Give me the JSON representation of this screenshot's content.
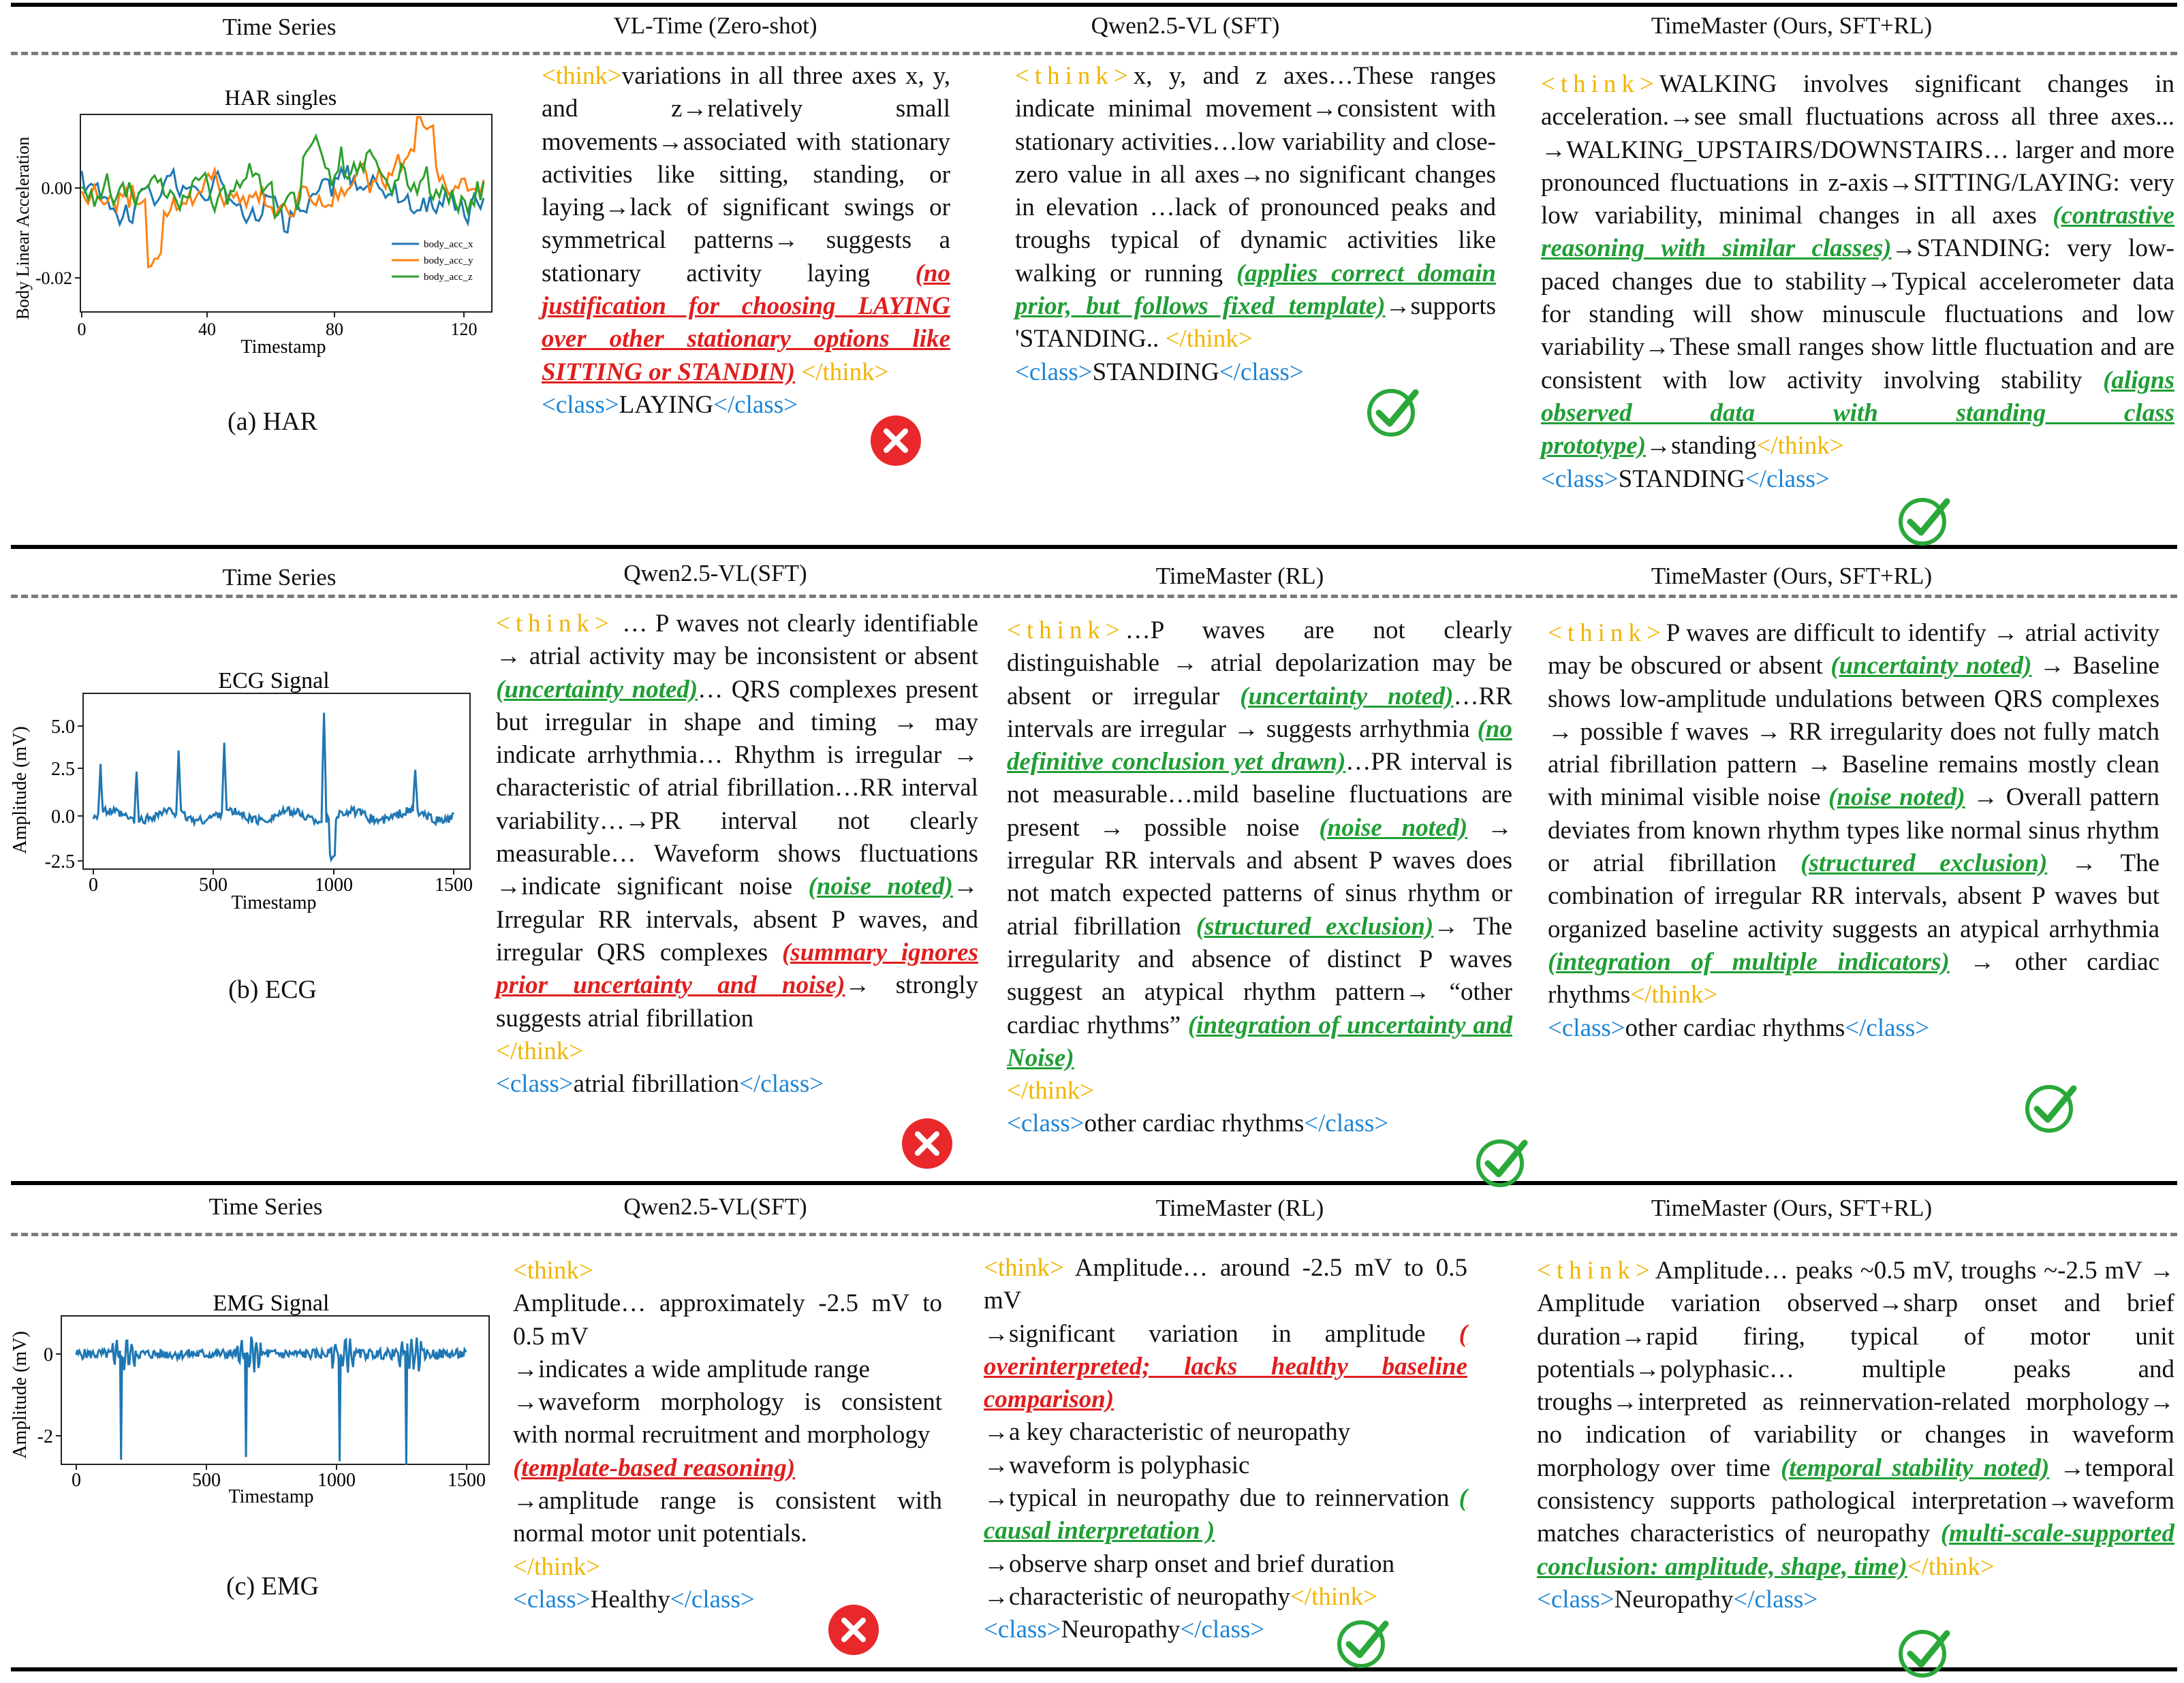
{
  "rows": [
    {
      "headers": [
        "Time Series",
        "VL-Time (Zero-shot)",
        "Qwen2.5-VL (SFT)",
        "TimeMaster (Ours, SFT+RL)"
      ],
      "caption": "(a) HAR",
      "chart": {
        "title": "HAR singles",
        "ylabel": "Body Linear Acceleration",
        "xlabel": "Timestamp",
        "xticks": [
          "0",
          "40",
          "80",
          "120"
        ],
        "yticks": [
          "0.00",
          "-0.02"
        ],
        "legend": [
          "body_acc_x",
          "body_acc_y",
          "body_acc_z"
        ],
        "colors": [
          "#1f77b4",
          "#ff7f0e",
          "#2ca02c"
        ]
      },
      "cols": [
        [
          {
            "t": "<think>",
            "c": "think"
          },
          {
            "t": "variations in all three axes x, y, and z→relatively small movements→associated with stationary activities like sitting, standing, or laying→lack of significant swings or symmetrical patterns→ suggests a stationary activity laying "
          },
          {
            "t": "(no justification for choosing LAYING over other stationary options like SITTING or STANDIN)",
            "c": "bad"
          },
          {
            "t": " </think>",
            "c": "think"
          },
          {
            "br": true
          },
          {
            "t": "<class>",
            "c": "cls"
          },
          {
            "t": "LAYING"
          },
          {
            "t": "</class>",
            "c": "cls"
          }
        ],
        [
          {
            "t": "<think>",
            "c": "think sp"
          },
          {
            "t": "x, y, and z axes…These ranges indicate minimal movement→consistent with stationary activities…low variability and close-zero value in all axes→no significant changes in elevation …lack of pronounced peaks and troughs typical of dynamic activities like walking or running "
          },
          {
            "t": "(applies correct domain prior, but follows fixed template)",
            "c": "good"
          },
          {
            "t": "→supports 'STANDING.. "
          },
          {
            "t": "</think>",
            "c": "think"
          },
          {
            "br": true
          },
          {
            "t": "<class>",
            "c": "cls"
          },
          {
            "t": "STANDING"
          },
          {
            "t": "</class>",
            "c": "cls"
          }
        ],
        [
          {
            "t": "<think>",
            "c": "think sp"
          },
          {
            "t": "WALKING involves significant changes in acceleration.→see small fluctuations across all three axes... →WALKING_UPSTAIRS/DOWNSTAIRS… larger and more pronounced fluctuations in z-axis→SITTING/LAYING: very low variability, minimal changes in all axes "
          },
          {
            "t": "(contrastive reasoning with similar classes)",
            "c": "good"
          },
          {
            "t": "→STANDING: very low-paced changes due to stability→Typical accelerometer data for standing will show minuscule fluctuations and low variability→These small ranges show little fluctuation and are consistent with low activity involving stability "
          },
          {
            "t": "(aligns observed data with standing class prototype)",
            "c": "good"
          },
          {
            "t": "→standing"
          },
          {
            "t": "</think>",
            "c": "think"
          },
          {
            "br": true
          },
          {
            "t": "<class>",
            "c": "cls"
          },
          {
            "t": "STANDING"
          },
          {
            "t": "</class>",
            "c": "cls"
          }
        ]
      ]
    },
    {
      "headers": [
        "Time Series",
        "Qwen2.5-VL(SFT)",
        "TimeMaster (RL)",
        "TimeMaster (Ours, SFT+RL)"
      ],
      "caption": "(b)  ECG",
      "chart": {
        "title": "ECG Signal",
        "ylabel": "Amplitude (mV)",
        "xlabel": "Timestamp",
        "xticks": [
          "0",
          "500",
          "1000",
          "1500"
        ],
        "yticks": [
          "5.0",
          "2.5",
          "0.0",
          "-2.5"
        ],
        "color": "#1f77b4"
      },
      "cols": [
        [
          {
            "t": "<think>",
            "c": "think sp"
          },
          {
            "t": " … P waves not clearly identifiable → atrial activity may be inconsistent or absent "
          },
          {
            "t": "(uncertainty noted)",
            "c": "good"
          },
          {
            "t": "… QRS complexes present but irregular in shape and timing → may indicate arrhythmia… Rhythm is irregular → characteristic of atrial fibrillation…RR interval variability…→PR interval not clearly measurable… Waveform shows fluctuations →indicate significant noise "
          },
          {
            "t": "(noise noted)",
            "c": "good"
          },
          {
            "t": "→ Irregular RR intervals, absent P waves, and irregular QRS complexes "
          },
          {
            "t": "(summary ignores prior uncertainty and noise)",
            "c": "bad"
          },
          {
            "t": "→ strongly suggests atrial fibrillation "
          },
          {
            "br": true
          },
          {
            "t": "</think>",
            "c": "think"
          },
          {
            "br": true
          },
          {
            "t": "<class>",
            "c": "cls"
          },
          {
            "t": "atrial fibrillation"
          },
          {
            "t": "</class>",
            "c": "cls"
          }
        ],
        [
          {
            "t": "<think>",
            "c": "think sp"
          },
          {
            "t": "…P waves are not clearly distinguishable → atrial depolarization may be absent or irregular "
          },
          {
            "t": "(uncertainty noted)",
            "c": "good"
          },
          {
            "t": "…RR intervals are irregular → suggests arrhythmia "
          },
          {
            "t": "(no definitive conclusion yet drawn)",
            "c": "good"
          },
          {
            "t": "…PR interval is not measurable…mild baseline fluctuations are present → possible noise "
          },
          {
            "t": "(noise noted)",
            "c": "good"
          },
          {
            "t": " → irregular RR intervals and absent P waves does not match expected patterns of sinus rhythm or atrial fibrillation "
          },
          {
            "t": "(structured exclusion)",
            "c": "good"
          },
          {
            "t": "→ The irregularity and absence of distinct P waves suggest an atypical rhythm pattern→ “other cardiac rhythms” "
          },
          {
            "t": "(integration of uncertainty and Noise)",
            "c": "good"
          },
          {
            "br": true
          },
          {
            "t": "</think>",
            "c": "think"
          },
          {
            "br": true
          },
          {
            "t": "<class>",
            "c": "cls"
          },
          {
            "t": "other cardiac rhythms"
          },
          {
            "t": "</class>",
            "c": "cls"
          }
        ],
        [
          {
            "t": "<think>",
            "c": "think sp"
          },
          {
            "t": "P waves are difficult to identify → atrial activity may be obscured or absent "
          },
          {
            "t": "(uncertainty noted)",
            "c": "good"
          },
          {
            "t": " → Baseline shows low-amplitude undulations between QRS complexes → possible f waves → RR irregularity does not fully match atrial fibrillation pattern → Baseline remains mostly clean with minimal visible noise "
          },
          {
            "t": "(noise noted)",
            "c": "good"
          },
          {
            "t": " → Overall pattern deviates from known rhythm types like normal sinus rhythm or atrial fibrillation "
          },
          {
            "t": "(structured exclusion)",
            "c": "good"
          },
          {
            "t": " → The combination of irregular RR intervals, absent P waves but organized baseline activity suggests an atypical arrhythmia "
          },
          {
            "t": "(integration of multiple indicators)",
            "c": "good"
          },
          {
            "t": " → other cardiac rhythms"
          },
          {
            "t": "</think>",
            "c": "think"
          },
          {
            "br": true
          },
          {
            "t": "<class>",
            "c": "cls"
          },
          {
            "t": "other cardiac rhythms"
          },
          {
            "t": "</class>",
            "c": "cls"
          }
        ]
      ]
    },
    {
      "headers": [
        "Time Series",
        "Qwen2.5-VL(SFT)",
        "TimeMaster (RL)",
        "TimeMaster (Ours, SFT+RL)"
      ],
      "caption": "(c)  EMG",
      "chart": {
        "title": "EMG Signal",
        "ylabel": "Amplitude (mV)",
        "xlabel": "Timestamp",
        "xticks": [
          "0",
          "500",
          "1000",
          "1500"
        ],
        "yticks": [
          "0",
          "-2"
        ],
        "color": "#1f77b4"
      },
      "cols": [
        [
          {
            "t": "<think>",
            "c": "think"
          },
          {
            "br": true
          },
          {
            "t": " Amplitude… approximately -2.5 mV to 0.5 mV"
          },
          {
            "br": true
          },
          {
            "t": "→indicates a wide amplitude range"
          },
          {
            "br": true
          },
          {
            "t": "→waveform morphology is consistent with normal recruitment and morphology"
          },
          {
            "br": true
          },
          {
            "t": "(template-based reasoning)",
            "c": "bad"
          },
          {
            "br": true
          },
          {
            "t": "→amplitude range is consistent with normal motor unit potentials."
          },
          {
            "br": true
          },
          {
            "t": "</think>",
            "c": "think"
          },
          {
            "br": true
          },
          {
            "t": "<class>",
            "c": "cls"
          },
          {
            "t": "Healthy"
          },
          {
            "t": "</class>",
            "c": "cls"
          }
        ],
        [
          {
            "t": "<think>",
            "c": "think"
          },
          {
            "t": " Amplitude… around -2.5 mV to 0.5 mV"
          },
          {
            "br": true
          },
          {
            "t": "→significant variation in amplitude "
          },
          {
            "t": "( overinterpreted; lacks healthy baseline comparison)",
            "c": "bad"
          },
          {
            "br": true
          },
          {
            "t": "→a key characteristic of neuropathy"
          },
          {
            "br": true
          },
          {
            "t": "→waveform is polyphasic"
          },
          {
            "br": true
          },
          {
            "t": "→typical in neuropathy due to reinnervation "
          },
          {
            "t": "( causal interpretation )",
            "c": "good"
          },
          {
            "br": true
          },
          {
            "t": "→observe sharp onset and brief duration"
          },
          {
            "br": true
          },
          {
            "t": "→characteristic of neuropathy"
          },
          {
            "t": "</think>",
            "c": "think"
          },
          {
            "br": true
          },
          {
            "t": "<class>",
            "c": "cls"
          },
          {
            "t": "Neuropathy"
          },
          {
            "t": "</class>",
            "c": "cls"
          }
        ],
        [
          {
            "t": "<think>",
            "c": "think sp"
          },
          {
            "t": "Amplitude… peaks ~0.5 mV, troughs ~-2.5 mV → Amplitude variation observed→sharp onset and brief duration→rapid firing, typical of motor unit potentials→polyphasic… multiple peaks and troughs→interpreted as reinnervation-related morphology→ no indication of variability or changes in waveform morphology over time "
          },
          {
            "t": "(temporal stability noted)",
            "c": "good"
          },
          {
            "t": " →temporal consistency supports pathological interpretation→waveform matches characteristics of neuropathy "
          },
          {
            "t": "(multi-scale-supported conclusion: amplitude, shape, time)",
            "c": "good"
          },
          {
            "t": "</think>",
            "c": "think"
          },
          {
            "br": true
          },
          {
            "t": "<class>",
            "c": "cls"
          },
          {
            "t": "Neuropathy"
          },
          {
            "t": "</class>",
            "c": "cls"
          }
        ]
      ],
      "verdicts": []
    }
  ],
  "verdicts": [
    [
      "wrong",
      "correct",
      "correct"
    ],
    [
      "wrong",
      "correct",
      "correct"
    ],
    [
      "wrong",
      "correct",
      "correct"
    ]
  ],
  "icon_names": {
    "wrong": "cross-circle-icon",
    "correct": "check-icon"
  },
  "colors": {
    "think": "#f0b400",
    "class": "#1b84d4",
    "good": "#1f9e35",
    "bad": "#e01e1e",
    "wrong_fill": "#e8282b",
    "check": "#2aa83a"
  }
}
